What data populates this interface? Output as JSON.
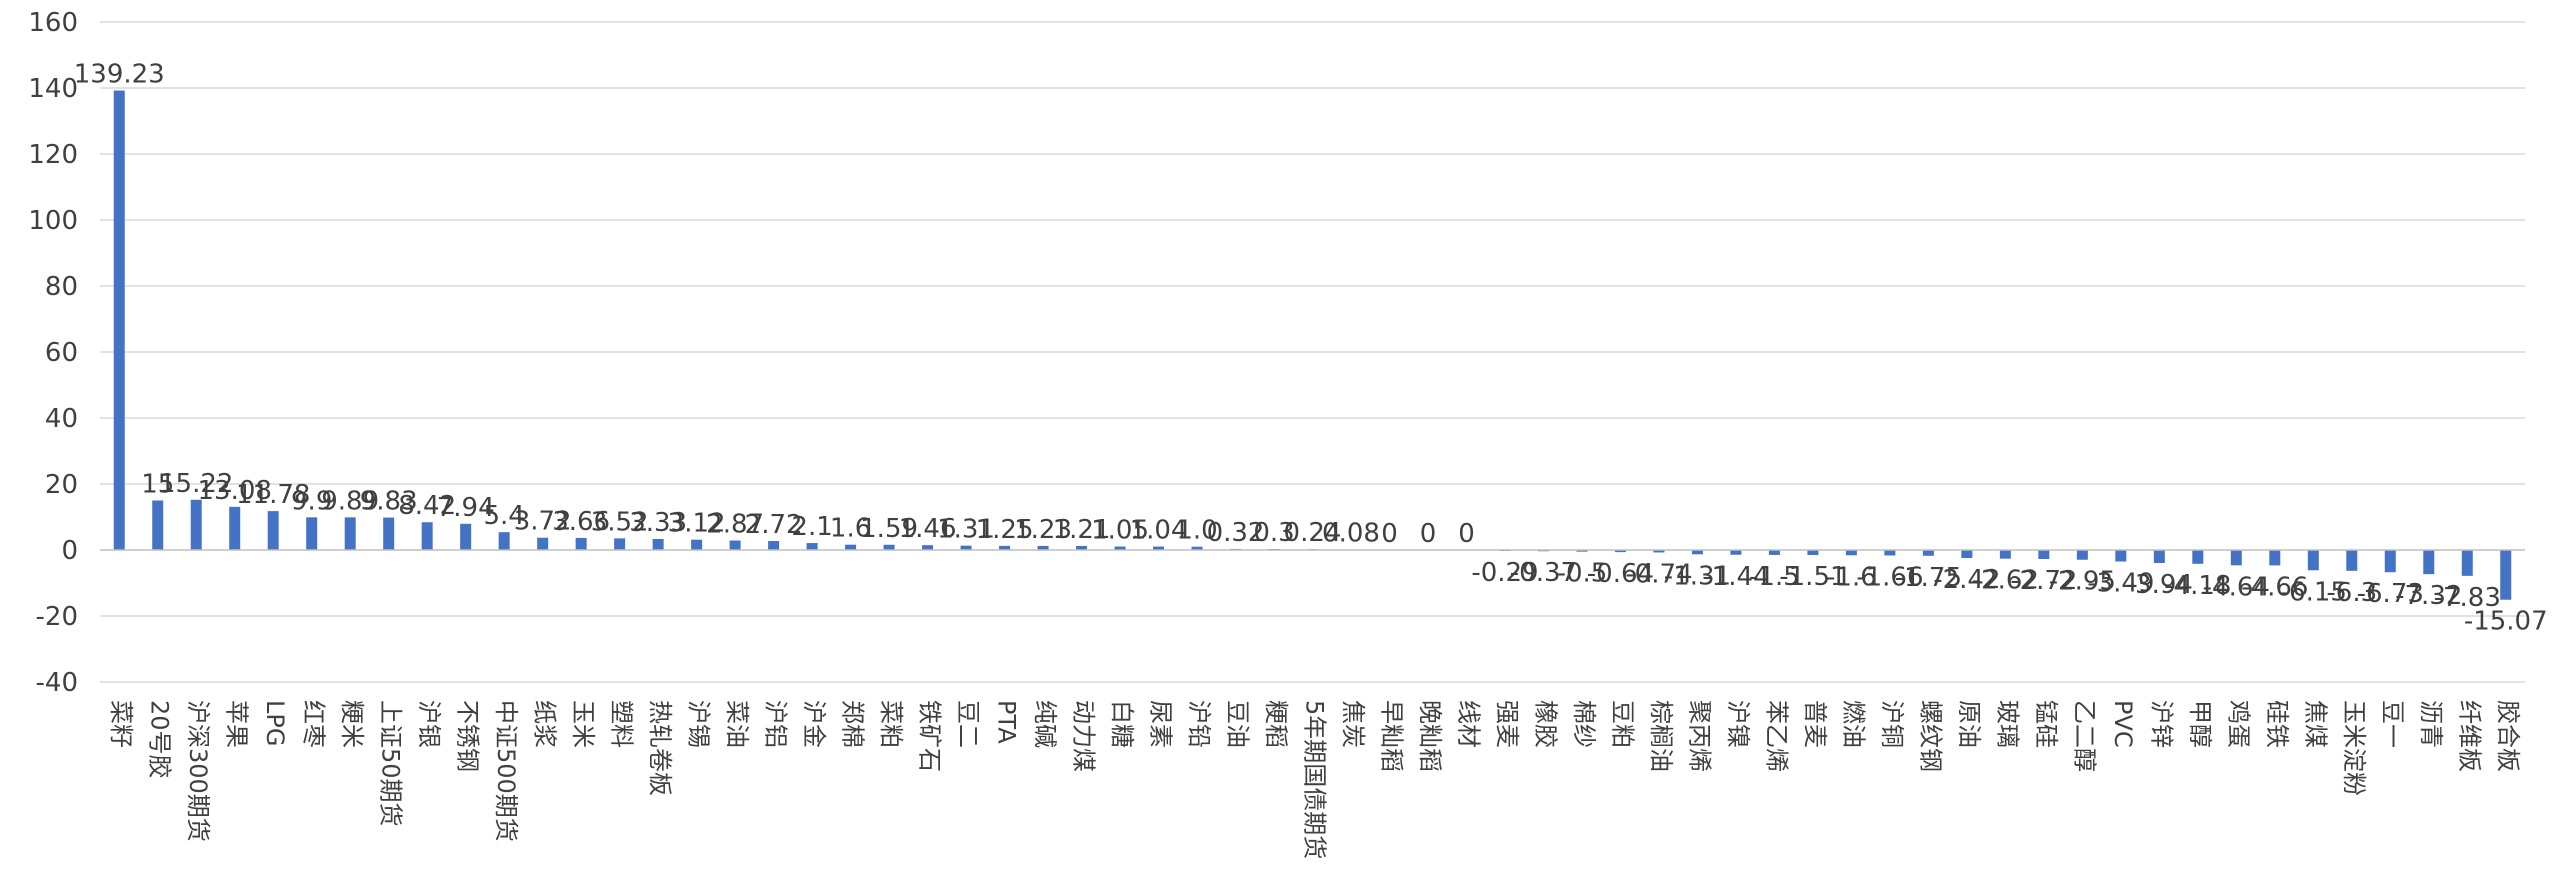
{
  "chart_data": {
    "type": "bar",
    "title": "",
    "xlabel": "",
    "ylabel": "",
    "ylim": [
      -40,
      160
    ],
    "yticks": [
      160,
      140,
      120,
      100,
      80,
      60,
      40,
      20,
      0,
      -20,
      -40
    ],
    "grid": true,
    "legend": "none",
    "bar_color": "#4472C4",
    "categories": [
      "菜籽",
      "20号胶",
      "沪深300期货",
      "苹果",
      "LPG",
      "红枣",
      "粳米",
      "上证50期货",
      "沪银",
      "不锈钢",
      "中证500期货",
      "纸浆",
      "玉米",
      "塑料",
      "热轧卷板",
      "沪锡",
      "菜油",
      "沪铝",
      "沪金",
      "郑棉",
      "菜粕",
      "铁矿石",
      "豆二",
      "PTA",
      "纯碱",
      "动力煤",
      "白糖",
      "尿素",
      "沪铅",
      "豆油",
      "粳稻",
      "5年期国债期货",
      "焦炭",
      "早籼稻",
      "晚籼稻",
      "线材",
      "强麦",
      "橡胶",
      "棉纱",
      "豆粕",
      "棕榈油",
      "聚丙烯",
      "沪镍",
      "苯乙烯",
      "普麦",
      "燃油",
      "沪铜",
      "螺纹钢",
      "原油",
      "玻璃",
      "锰硅",
      "乙二醇",
      "PVC",
      "沪锌",
      "甲醇",
      "鸡蛋",
      "硅铁",
      "焦煤",
      "玉米淀粉",
      "豆一",
      "沥青",
      "纤维板",
      "胶合板"
    ],
    "values": [
      139.23,
      15,
      15.22,
      13.08,
      11.78,
      9.9,
      9.89,
      9.83,
      8.42,
      7.94,
      5.4,
      3.72,
      3.66,
      3.52,
      3.33,
      3.12,
      2.87,
      2.72,
      2.1,
      1.6,
      1.59,
      1.46,
      1.31,
      1.25,
      1.23,
      1.21,
      1.05,
      1.04,
      1.0,
      0.32,
      0.3,
      0.24,
      0.08,
      0,
      0,
      0,
      -0.29,
      -0.37,
      -0.5,
      -0.64,
      -0.74,
      -1.31,
      -1.44,
      -1.5,
      -1.51,
      -1.6,
      -1.66,
      -1.75,
      -2.42,
      -2.62,
      -2.72,
      -2.95,
      -3.49,
      -3.94,
      -4.18,
      -4.64,
      -4.66,
      -6.15,
      -6.3,
      -6.73,
      -7.32,
      -7.83,
      -15.07
    ],
    "data_labels": [
      "139.23",
      "15",
      "15.22",
      "13.08",
      "11.78",
      "9.9",
      "9.89",
      "9.83",
      "8.42",
      "7.94",
      "5.4",
      "3.72",
      "3.66",
      "3.52",
      "3.33",
      "3.12",
      "2.87",
      "2.72",
      "2.1",
      "1.6",
      "1.59",
      "1.46",
      "1.31",
      "1.25",
      "1.23",
      "1.21",
      "1.05",
      "1.04",
      "1.0",
      "0.32",
      "0.3",
      "0.24",
      "0.08",
      "0",
      "0",
      "0",
      "-0.29",
      "-0.37",
      "-0.5",
      "-0.64",
      "-0.74",
      "-1.31",
      "-1.44",
      "-1.5",
      "-1.51",
      "-1.6",
      "-1.66",
      "-1.75",
      "-2.42",
      "-2.62",
      "-2.72",
      "-2.95",
      "-3.49",
      "-3.94",
      "-4.18",
      "-4.64",
      "-4.66",
      "-6.15",
      "-6.3",
      "-6.73",
      "-7.32",
      "-7.83",
      "-15.07"
    ]
  }
}
